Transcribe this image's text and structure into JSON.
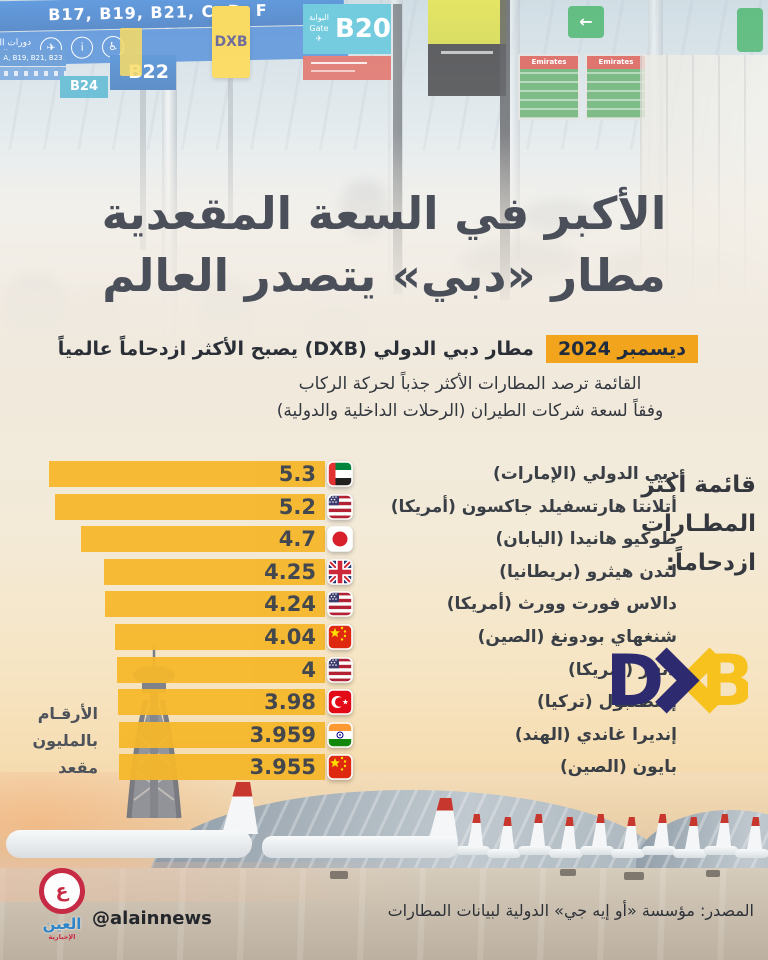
{
  "title": {
    "line1": "الأكبر في السعة المقعدية",
    "line2": "مطار «دبي» يتصدر العالم"
  },
  "header": {
    "badge": "ديسمبر 2024",
    "lead": "مطار دبي الدولي (DXB) يصبح الأكثر ازدحاماً عالمياً",
    "sub1": "القائمة ترصد المطارات الأكثر جذباً لحركة الركاب",
    "sub2": "وفقاً لسعة شركات الطيران (الرحلات الداخلية والدولية)"
  },
  "photo_signs": {
    "overhead_gates": "B17, B19, B21, C, D, F",
    "toilets_ar": "دورات المياه",
    "toilets_en": "Toilets",
    "left_sign": "A, B19, B21, B23",
    "gate_b24": "B24",
    "gate_b22": "B22",
    "gate_b20": "B20",
    "gate_word": "Gate",
    "gate_ar": "البوابة",
    "dxb": "DXB",
    "emirates": "Emirates"
  },
  "icons": {
    "plane": "✈",
    "info": "i",
    "wheelchair": "♿",
    "up_arrow": "↑",
    "left_arrow": "←"
  },
  "chart": {
    "side_title": [
      "قائمة أكثر",
      "المطـارات",
      "ازدحاماً:"
    ],
    "unit_note": [
      "الأرقـام",
      "بالمليون",
      "مقعد"
    ]
  },
  "chart_data": {
    "type": "bar",
    "orientation": "horizontal",
    "title": "قائمة أكثر المطارات ازدحاماً",
    "unit": "الأرقام بالمليون مقعد",
    "xlim": [
      0,
      5.3
    ],
    "bar_color": "#F6B72B",
    "rows": [
      {
        "label": "دبي الدولي (الإمارات)",
        "value": 5.3,
        "value_label": "5.3",
        "country": "uae"
      },
      {
        "label": "أتلانتا هارتسفيلد جاكسون (أمريكا)",
        "value": 5.2,
        "value_label": "5.2",
        "country": "usa"
      },
      {
        "label": "طوكيو هانيدا (اليابان)",
        "value": 4.7,
        "value_label": "4.7",
        "country": "japan"
      },
      {
        "label": "لندن هيثرو (بريطانيا)",
        "value": 4.25,
        "value_label": "4.25",
        "country": "uk"
      },
      {
        "label": "دالاس فورت وورث (أمريكا)",
        "value": 4.24,
        "value_label": "4.24",
        "country": "usa"
      },
      {
        "label": "شنغهاي بودونغ (الصين)",
        "value": 4.04,
        "value_label": "4.04",
        "country": "china"
      },
      {
        "label": "دنفر (أمريكا)",
        "value": 4,
        "value_label": "4",
        "country": "usa"
      },
      {
        "label": "إسطنبول (تركيا)",
        "value": 3.98,
        "value_label": "3.98",
        "country": "turkey"
      },
      {
        "label": "إنديرا غاندي (الهند)",
        "value": 3.959,
        "value_label": "3.959",
        "country": "india"
      },
      {
        "label": "بايون (الصين)",
        "value": 3.955,
        "value_label": "3.955",
        "country": "china"
      }
    ]
  },
  "logo": {
    "d": "D",
    "b": "B",
    "navy": "#2D2A70",
    "yellow": "#F7C21E"
  },
  "footer": {
    "source": "المصدر: مؤسسة «أو إيه جي» الدولية لبيانات المطارات",
    "handle": "@alainnews",
    "brand_glyph": "ع",
    "brand_main": "العين",
    "brand_sub": "الإخبارية"
  },
  "colors": {
    "bar": "#F6B72B",
    "badge_bg": "#F2A51C",
    "title_text": "#4A4F59",
    "value_text": "#3A3F48",
    "dxb_navy": "#2D2A70",
    "dxb_yellow": "#F7C21E",
    "brand_red": "#C62A44"
  }
}
